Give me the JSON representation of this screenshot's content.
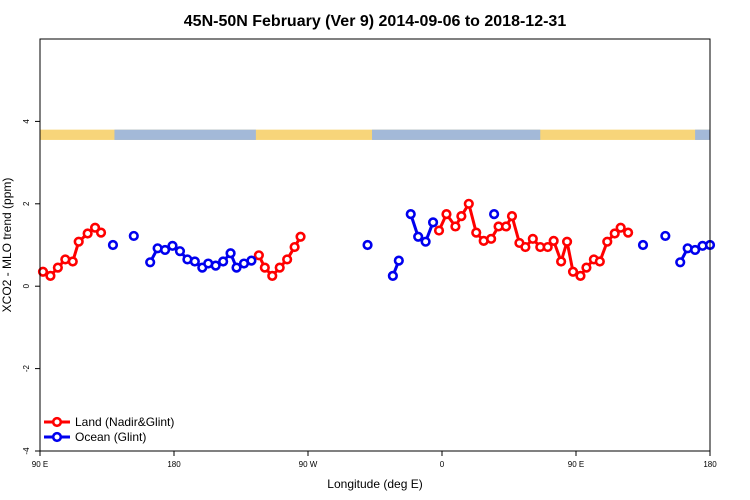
{
  "chart_data": {
    "type": "line",
    "title": "45N-50N February (Ver 9)   2014-09-06 to 2018-12-31",
    "xlabel": "Longitude (deg E)",
    "ylabel": "XCO2 - MLO trend (ppm)",
    "xlim": [
      90,
      540
    ],
    "ylim": [
      -4,
      6
    ],
    "x_ticks": [
      {
        "value": 90,
        "label": "90 E"
      },
      {
        "value": 180,
        "label": "180"
      },
      {
        "value": 270,
        "label": "90 W"
      },
      {
        "value": 360,
        "label": "0"
      },
      {
        "value": 450,
        "label": "90 E"
      },
      {
        "value": 540,
        "label": "180"
      }
    ],
    "y_ticks": [
      {
        "value": -4,
        "label": "-4"
      },
      {
        "value": -2,
        "label": "-2"
      },
      {
        "value": 0,
        "label": "0"
      },
      {
        "value": 2,
        "label": "2"
      },
      {
        "value": 4,
        "label": "4"
      }
    ],
    "grid": false,
    "legend_position": "bottom-left",
    "land_strip": {
      "y_range": [
        3.55,
        3.8
      ],
      "land_color": "#f7d57a",
      "ocean_color": "#a3b9d8",
      "ocean_segments": [
        [
          140,
          235
        ],
        [
          313,
          426
        ],
        [
          530,
          540
        ]
      ]
    },
    "series": [
      {
        "name": "Land (Nadir&Glint)",
        "color": "#ff0000",
        "segments": [
          [
            [
              92,
              0.35
            ],
            [
              97,
              0.25
            ],
            [
              102,
              0.45
            ],
            [
              107,
              0.65
            ],
            [
              112,
              0.6
            ],
            [
              116,
              1.08
            ],
            [
              122,
              1.28
            ],
            [
              127,
              1.42
            ],
            [
              131,
              1.3
            ]
          ],
          [
            [
              237,
              0.75
            ],
            [
              241,
              0.45
            ],
            [
              246,
              0.25
            ],
            [
              251,
              0.45
            ],
            [
              256,
              0.65
            ],
            [
              261,
              0.95
            ],
            [
              265,
              1.2
            ]
          ],
          [
            [
              358,
              1.35
            ],
            [
              363,
              1.75
            ],
            [
              369,
              1.45
            ],
            [
              373,
              1.7
            ],
            [
              378,
              2.0
            ],
            [
              383,
              1.3
            ],
            [
              388,
              1.1
            ],
            [
              393,
              1.15
            ],
            [
              398,
              1.45
            ],
            [
              403,
              1.45
            ],
            [
              407,
              1.7
            ],
            [
              412,
              1.05
            ],
            [
              416,
              0.95
            ],
            [
              421,
              1.15
            ],
            [
              426,
              0.95
            ],
            [
              431,
              0.95
            ],
            [
              435,
              1.1
            ],
            [
              440,
              0.6
            ],
            [
              444,
              1.08
            ],
            [
              448,
              0.35
            ],
            [
              453,
              0.25
            ],
            [
              457,
              0.45
            ],
            [
              462,
              0.65
            ],
            [
              466,
              0.6
            ],
            [
              471,
              1.08
            ],
            [
              476,
              1.28
            ],
            [
              480,
              1.42
            ],
            [
              485,
              1.3
            ]
          ]
        ]
      },
      {
        "name": "Ocean (Glint)",
        "color": "#0000ee",
        "segments": [
          [
            [
              139,
              1.0
            ]
          ],
          [
            [
              153,
              1.22
            ]
          ],
          [
            [
              164,
              0.58
            ],
            [
              169,
              0.92
            ],
            [
              174,
              0.88
            ],
            [
              179,
              0.98
            ],
            [
              184,
              0.85
            ],
            [
              189,
              0.65
            ],
            [
              194,
              0.6
            ],
            [
              199,
              0.45
            ],
            [
              203,
              0.55
            ],
            [
              208,
              0.5
            ],
            [
              213,
              0.6
            ],
            [
              218,
              0.8
            ],
            [
              222,
              0.45
            ],
            [
              227,
              0.55
            ],
            [
              232,
              0.62
            ]
          ],
          [
            [
              310,
              1.0
            ]
          ],
          [
            [
              327,
              0.25
            ],
            [
              331,
              0.62
            ]
          ],
          [
            [
              339,
              1.75
            ],
            [
              344,
              1.2
            ],
            [
              349,
              1.08
            ],
            [
              354,
              1.55
            ]
          ],
          [
            [
              395,
              1.75
            ]
          ],
          [
            [
              495,
              1.0
            ]
          ],
          [
            [
              510,
              1.22
            ]
          ],
          [
            [
              520,
              0.58
            ],
            [
              525,
              0.92
            ],
            [
              530,
              0.88
            ],
            [
              535,
              0.98
            ],
            [
              540,
              1.0
            ]
          ]
        ]
      }
    ]
  }
}
